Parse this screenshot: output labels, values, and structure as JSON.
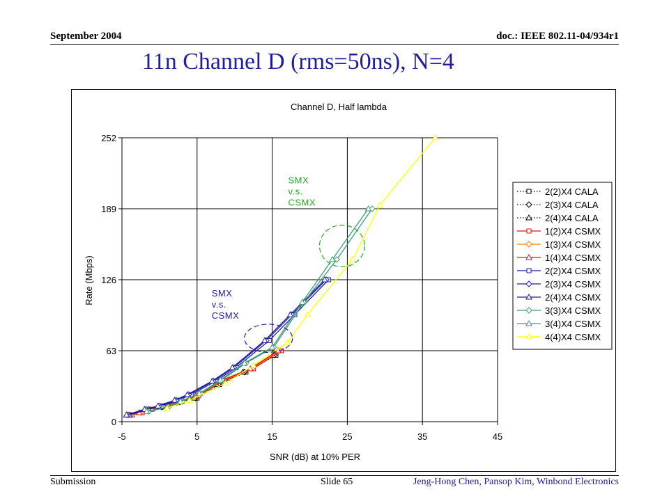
{
  "header": {
    "date": "September 2004",
    "doc": "doc.: IEEE 802.11-04/934r1"
  },
  "slide_title": "11n Channel D (rms=50ns), N=4",
  "footer": {
    "left": "Submission",
    "slide": "Slide 65",
    "authors": "Jeng-Hong Chen, Pansop Kim, Winbond Electronics"
  },
  "chart_data": {
    "type": "line",
    "title": "Channel D, Half lambda",
    "xlabel": "SNR (dB) at 10% PER",
    "ylabel": "Rate (Mbps)",
    "xlim": [
      -5,
      45
    ],
    "ylim": [
      0,
      252
    ],
    "xticks": [
      -5,
      5,
      15,
      25,
      35,
      45
    ],
    "yticks": [
      0,
      63,
      126,
      189,
      252
    ],
    "grid": true,
    "legend_position": "right",
    "series": [
      {
        "name": "2(2)X4 CALA",
        "color": "#000000",
        "dash": "dot",
        "marker": "square",
        "points": [
          [
            -4,
            6
          ],
          [
            -1.5,
            10
          ],
          [
            0.5,
            13
          ],
          [
            2.5,
            17
          ],
          [
            5,
            21
          ],
          [
            8,
            33
          ],
          [
            11.5,
            44
          ],
          [
            15.5,
            59
          ]
        ]
      },
      {
        "name": "2(3)X4 CALA",
        "color": "#000000",
        "dash": "dot",
        "marker": "diamond",
        "points": [
          [
            -4.2,
            6
          ],
          [
            -1.8,
            10
          ],
          [
            0.3,
            13
          ],
          [
            2.3,
            17
          ],
          [
            4.8,
            21
          ],
          [
            7.8,
            33
          ],
          [
            11.3,
            44
          ],
          [
            15.3,
            59
          ]
        ]
      },
      {
        "name": "2(4)X4 CALA",
        "color": "#000000",
        "dash": "dot",
        "marker": "triangle",
        "points": [
          [
            -4.4,
            6
          ],
          [
            -2,
            10
          ],
          [
            0.1,
            13
          ],
          [
            2.1,
            17
          ],
          [
            4.6,
            21
          ],
          [
            7.6,
            33
          ],
          [
            11.1,
            44
          ],
          [
            15.1,
            59
          ]
        ]
      },
      {
        "name": "1(2)X4 CSMX",
        "color": "#e01010",
        "dash": "solid",
        "marker": "square",
        "points": [
          [
            -3.6,
            6
          ],
          [
            -2.3,
            8
          ],
          [
            -1,
            11
          ],
          [
            1,
            14
          ],
          [
            3,
            18
          ],
          [
            5.2,
            23
          ],
          [
            8.4,
            36
          ],
          [
            12.5,
            47
          ],
          [
            16.2,
            63
          ]
        ]
      },
      {
        "name": "1(3)X4 CSMX",
        "color": "#ff8000",
        "dash": "solid",
        "marker": "diamond",
        "points": [
          [
            -3.8,
            6
          ],
          [
            -2.5,
            8
          ],
          [
            -1.2,
            11
          ],
          [
            0.8,
            14
          ],
          [
            2.8,
            18
          ],
          [
            5,
            23
          ],
          [
            8.2,
            36
          ],
          [
            12.3,
            47
          ],
          [
            16,
            63
          ]
        ]
      },
      {
        "name": "1(4)X4 CSMX",
        "color": "#e01010",
        "dash": "solid",
        "marker": "triangle",
        "points": [
          [
            -4,
            6
          ],
          [
            -2.7,
            8
          ],
          [
            -1.4,
            11
          ],
          [
            0.6,
            14
          ],
          [
            2.6,
            18
          ],
          [
            4.8,
            23
          ],
          [
            8,
            36
          ],
          [
            12.1,
            47
          ],
          [
            15.8,
            63
          ]
        ]
      },
      {
        "name": "2(2)X4 CSMX",
        "color": "#1c1ca8",
        "dash": "solid",
        "marker": "square",
        "points": [
          [
            -4,
            6
          ],
          [
            -1.5,
            11
          ],
          [
            0.3,
            14
          ],
          [
            2.5,
            19
          ],
          [
            4.2,
            24
          ],
          [
            7.5,
            36
          ],
          [
            10.2,
            48
          ],
          [
            14.6,
            72
          ],
          [
            18,
            95
          ],
          [
            22.5,
            126
          ]
        ]
      },
      {
        "name": "2(3)X4 CSMX",
        "color": "#1c1ca8",
        "dash": "solid",
        "marker": "diamond",
        "points": [
          [
            -4.2,
            6
          ],
          [
            -1.8,
            11
          ],
          [
            0,
            14
          ],
          [
            2.2,
            19
          ],
          [
            3.9,
            24
          ],
          [
            7.2,
            36
          ],
          [
            9.9,
            48
          ],
          [
            14.2,
            72
          ],
          [
            17.6,
            95
          ],
          [
            22.2,
            126
          ]
        ]
      },
      {
        "name": "2(4)X4 CSMX",
        "color": "#1c1ca8",
        "dash": "solid",
        "marker": "triangle",
        "points": [
          [
            -4.4,
            6
          ],
          [
            -2,
            11
          ],
          [
            -0.2,
            14
          ],
          [
            2,
            19
          ],
          [
            3.7,
            24
          ],
          [
            7,
            36
          ],
          [
            9.7,
            48
          ],
          [
            14,
            72
          ],
          [
            17.4,
            95
          ],
          [
            22,
            126
          ]
        ]
      },
      {
        "name": "3(3)X4 CSMX",
        "color": "#3c9a78",
        "dash": "solid",
        "marker": "diamond",
        "points": [
          [
            -1.5,
            9
          ],
          [
            1.2,
            13
          ],
          [
            3,
            18
          ],
          [
            5.5,
            25
          ],
          [
            8.3,
            37
          ],
          [
            11.5,
            52
          ],
          [
            15.2,
            66
          ],
          [
            19.2,
            106
          ],
          [
            23.6,
            144
          ],
          [
            28.3,
            189
          ]
        ]
      },
      {
        "name": "3(4)X4 CSMX",
        "color": "#3c9a78",
        "dash": "solid",
        "marker": "triangle",
        "points": [
          [
            -1.7,
            9
          ],
          [
            1,
            13
          ],
          [
            2.8,
            18
          ],
          [
            5.3,
            25
          ],
          [
            8.1,
            37
          ],
          [
            11.3,
            52
          ],
          [
            15,
            66
          ],
          [
            19,
            106
          ],
          [
            23,
            144
          ],
          [
            27.8,
            189
          ]
        ]
      },
      {
        "name": "4(4)X4 CSMX",
        "color": "#ffff00",
        "dash": "solid",
        "marker": "triangle",
        "points": [
          [
            1,
            12
          ],
          [
            4,
            19
          ],
          [
            8.8,
            34
          ],
          [
            12.5,
            50
          ],
          [
            17,
            70
          ],
          [
            19.7,
            95
          ],
          [
            25.7,
            144
          ],
          [
            29.3,
            192
          ],
          [
            36.7,
            252
          ]
        ]
      }
    ],
    "annotations": [
      {
        "lines": [
          "SMX",
          "v.s.",
          "CSMX"
        ],
        "color": "#1c1ca8",
        "circle_center": [
          14.5,
          74
        ],
        "circle_radius": [
          3.2,
          12.5
        ]
      },
      {
        "lines": [
          "SMX",
          "v.s.",
          "CSMX"
        ],
        "color": "#22aa22",
        "circle_center": [
          24.3,
          156
        ],
        "circle_radius": [
          3,
          18.5
        ]
      }
    ]
  }
}
